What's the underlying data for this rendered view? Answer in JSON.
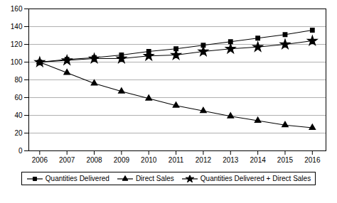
{
  "chart_data": {
    "type": "line",
    "x": [
      2006,
      2007,
      2008,
      2009,
      2010,
      2011,
      2012,
      2013,
      2014,
      2015,
      2016
    ],
    "series": [
      {
        "name": "Quantities Delivered",
        "color": "#000000",
        "marker": "square",
        "values": [
          100,
          103,
          105,
          108,
          112,
          115,
          119,
          123,
          127,
          131,
          136
        ]
      },
      {
        "name": "Direct Sales",
        "color": "#000000",
        "marker": "triangle",
        "values": [
          100,
          88,
          76,
          67,
          59,
          51,
          45,
          39,
          34,
          29,
          26
        ]
      },
      {
        "name": "Quantities Delivered + Direct Sales",
        "color": "#000000",
        "marker": "star",
        "values": [
          100,
          102,
          104,
          104,
          107,
          108,
          112,
          115,
          117,
          120,
          124
        ]
      }
    ],
    "xlim": [
      2005.6,
      2016.5
    ],
    "xticks": [
      2006,
      2007,
      2008,
      2009,
      2010,
      2011,
      2012,
      2013,
      2014,
      2015,
      2016
    ],
    "ylim": [
      0,
      160
    ],
    "yticks": [
      0,
      20,
      40,
      60,
      80,
      100,
      120,
      140,
      160
    ],
    "grid": true,
    "legend": "bottom"
  }
}
